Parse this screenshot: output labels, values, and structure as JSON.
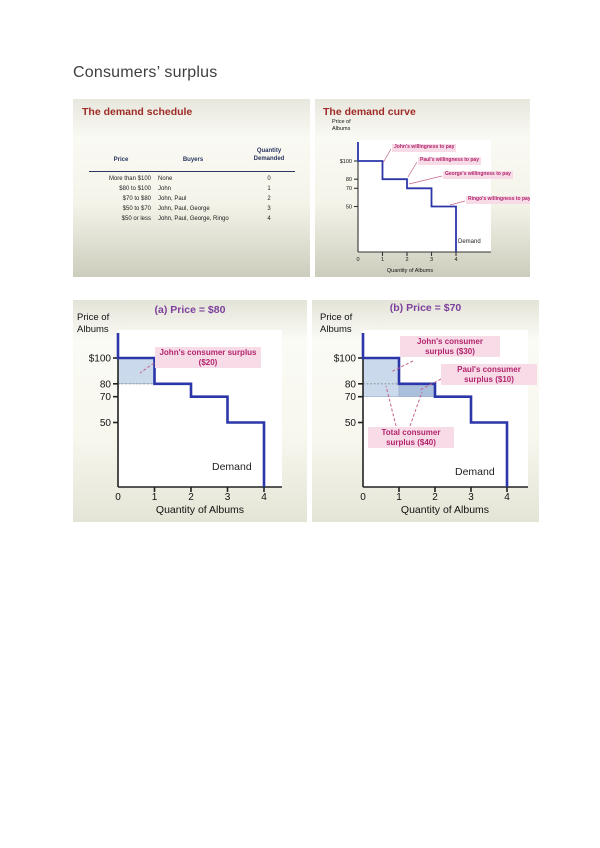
{
  "page": {
    "title": "Consumers’ surplus"
  },
  "slides": {
    "schedule": {
      "title": "The demand schedule",
      "table": {
        "col_headers": [
          "Price",
          "Buyers",
          "Quantity\nDemanded"
        ],
        "rows": [
          {
            "price": "More than $100",
            "buyers": "None",
            "qty": "0"
          },
          {
            "price": "$80 to $100",
            "buyers": "John",
            "qty": "1"
          },
          {
            "price": "$70 to $80",
            "buyers": "John, Paul",
            "qty": "2"
          },
          {
            "price": "$50 to $70",
            "buyers": "John, Paul, George",
            "qty": "3"
          },
          {
            "price": "$50 or less",
            "buyers": "John, Paul, George, Ringo",
            "qty": "4"
          }
        ]
      }
    },
    "curve": {
      "title": "The demand curve"
    }
  },
  "colors": {
    "slide_title_red": "#9e2b26",
    "panel_title_purple": "#7d3f9b",
    "demand_curve_blue": "#2b36a8",
    "surplus_fill_light": "#cbd9ec",
    "surplus_fill_dark": "#a9bfdc",
    "callout_bg": "#f7dce8",
    "callout_text": "#b3246c",
    "callout_line": "#c4628e",
    "table_header_navy": "#2a3560",
    "dotted_gray": "#8a8a8a"
  },
  "chart_data": [
    {
      "id": "demand-curve",
      "type": "line",
      "subtype": "step-demand",
      "title": "The demand curve",
      "xlabel": "Quantity of Albums",
      "ylabel": "Price of\nAlbums",
      "x_ticks": [
        "0",
        "1",
        "2",
        "3",
        "4"
      ],
      "y_ticks": [
        {
          "label": "$100",
          "value": 100
        },
        {
          "label": "80",
          "value": 80
        },
        {
          "label": "70",
          "value": 70
        },
        {
          "label": "50",
          "value": 50
        }
      ],
      "xlim": [
        0,
        5.3
      ],
      "ylim": [
        0,
        121
      ],
      "grid": false,
      "steps": [
        {
          "buyer": "John",
          "price": 100,
          "from_q": 0,
          "to_q": 1
        },
        {
          "buyer": "Paul",
          "price": 80,
          "from_q": 1,
          "to_q": 2
        },
        {
          "buyer": "George",
          "price": 70,
          "from_q": 2,
          "to_q": 3
        },
        {
          "buyer": "Ringo",
          "price": 50,
          "from_q": 3,
          "to_q": 4
        }
      ],
      "curve_label": "Demand",
      "annotations": [
        {
          "text": "John's willingness to pay"
        },
        {
          "text": "Paul's willingness to pay"
        },
        {
          "text": "George's willingness to pay"
        },
        {
          "text": "Ringo's willingness to pay"
        }
      ]
    },
    {
      "id": "panel-a",
      "type": "line",
      "subtype": "step-demand",
      "title": "(a) Price = $80",
      "price_level": 80,
      "xlabel": "Quantity of Albums",
      "ylabel": "Price of\nAlbums",
      "x_ticks": [
        "0",
        "1",
        "2",
        "3",
        "4"
      ],
      "y_ticks": [
        {
          "label": "$100",
          "value": 100
        },
        {
          "label": "80",
          "value": 80
        },
        {
          "label": "70",
          "value": 70
        },
        {
          "label": "50",
          "value": 50
        }
      ],
      "xlim": [
        0,
        4.5
      ],
      "ylim": [
        0,
        120
      ],
      "grid": false,
      "steps": [
        {
          "buyer": "John",
          "price": 100,
          "from_q": 0,
          "to_q": 1
        },
        {
          "buyer": "Paul",
          "price": 80,
          "from_q": 1,
          "to_q": 2
        },
        {
          "buyer": "George",
          "price": 70,
          "from_q": 2,
          "to_q": 3
        },
        {
          "buyer": "Ringo",
          "price": 50,
          "from_q": 3,
          "to_q": 4
        }
      ],
      "regions": [
        {
          "buyer": "John",
          "q0": 0,
          "q1": 1,
          "p0": 80,
          "p1": 100,
          "surplus": 20,
          "shade": "light"
        }
      ],
      "dotted_price_lines": [
        {
          "price": 80,
          "to_q": 1
        }
      ],
      "curve_label": "Demand",
      "annotations": [
        {
          "text": "John's consumer surplus ($20)",
          "value": 20
        }
      ]
    },
    {
      "id": "panel-b",
      "type": "line",
      "subtype": "step-demand",
      "title": "(b) Price = $70",
      "price_level": 70,
      "total_surplus": 40,
      "xlabel": "Quantity of Albums",
      "ylabel": "Price of\nAlbums",
      "x_ticks": [
        "0",
        "1",
        "2",
        "3",
        "4"
      ],
      "y_ticks": [
        {
          "label": "$100",
          "value": 100
        },
        {
          "label": "80",
          "value": 80
        },
        {
          "label": "70",
          "value": 70
        },
        {
          "label": "50",
          "value": 50
        }
      ],
      "xlim": [
        0,
        4.5
      ],
      "ylim": [
        0,
        120
      ],
      "grid": false,
      "steps": [
        {
          "buyer": "John",
          "price": 100,
          "from_q": 0,
          "to_q": 1
        },
        {
          "buyer": "Paul",
          "price": 80,
          "from_q": 1,
          "to_q": 2
        },
        {
          "buyer": "George",
          "price": 70,
          "from_q": 2,
          "to_q": 3
        },
        {
          "buyer": "Ringo",
          "price": 50,
          "from_q": 3,
          "to_q": 4
        }
      ],
      "regions": [
        {
          "buyer": "John",
          "q0": 0,
          "q1": 1,
          "p0": 70,
          "p1": 100,
          "surplus": 30,
          "shade": "light"
        },
        {
          "buyer": "Paul",
          "q0": 1,
          "q1": 2,
          "p0": 70,
          "p1": 80,
          "surplus": 10,
          "shade": "dark"
        }
      ],
      "dotted_price_lines": [
        {
          "price": 80,
          "to_q": 1
        }
      ],
      "curve_label": "Demand",
      "annotations": [
        {
          "text": "John's consumer surplus ($30)",
          "value": 30
        },
        {
          "text": "Paul's consumer surplus ($10)",
          "value": 10
        },
        {
          "text": "Total consumer surplus ($40)",
          "value": 40
        }
      ]
    }
  ]
}
